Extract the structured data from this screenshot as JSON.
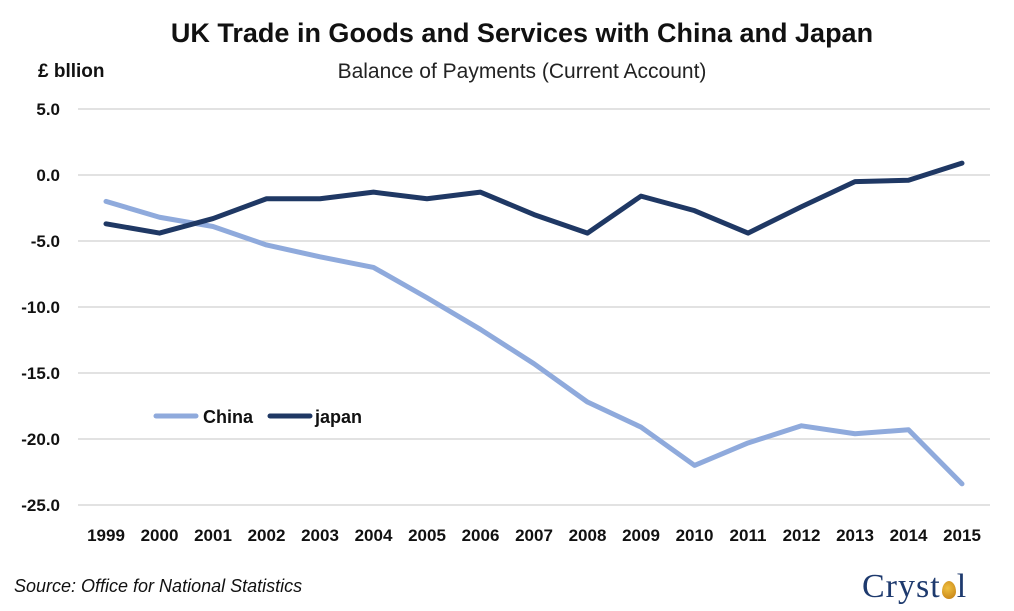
{
  "header": {
    "title": "UK Trade in Goods and Services with China and Japan",
    "subtitle": "Balance of Payments (Current Account)",
    "unit": "£ bllion"
  },
  "footer": {
    "source": "Source: Office for National Statistics",
    "logo": "Cryst",
    "logo_end": "l"
  },
  "chart_data": {
    "type": "line",
    "title": "UK Trade in Goods and Services with China and Japan",
    "subtitle": "Balance of Payments (Current Account)",
    "ylabel": "£ bllion",
    "xlabel": "",
    "ylim": [
      -25,
      5
    ],
    "yticks": [
      "5.0",
      "0.0",
      "-5.0",
      "-10.0",
      "-15.0",
      "-20.0",
      "-25.0"
    ],
    "ytick_values": [
      5,
      0,
      -5,
      -10,
      -15,
      -20,
      -25
    ],
    "grid": true,
    "legend_placement": "center-left",
    "categories": [
      "1999",
      "2000",
      "2001",
      "2002",
      "2003",
      "2004",
      "2005",
      "2006",
      "2007",
      "2008",
      "2009",
      "2010",
      "2011",
      "2012",
      "2013",
      "2014",
      "2015"
    ],
    "series": [
      {
        "name": "China",
        "color": "#8faadc",
        "values": [
          -2.0,
          -3.2,
          -3.9,
          -5.3,
          -6.2,
          -7.0,
          -9.3,
          -11.7,
          -14.3,
          -17.2,
          -19.1,
          -22.0,
          -20.3,
          -19.0,
          -19.6,
          -19.3,
          -23.4
        ]
      },
      {
        "name": "japan",
        "color": "#1f3864",
        "values": [
          -3.7,
          -4.4,
          -3.3,
          -1.8,
          -1.8,
          -1.3,
          -1.8,
          -1.3,
          -3.0,
          -4.4,
          -1.6,
          -2.7,
          -4.4,
          -2.4,
          -0.5,
          -0.4,
          0.9
        ]
      }
    ]
  }
}
